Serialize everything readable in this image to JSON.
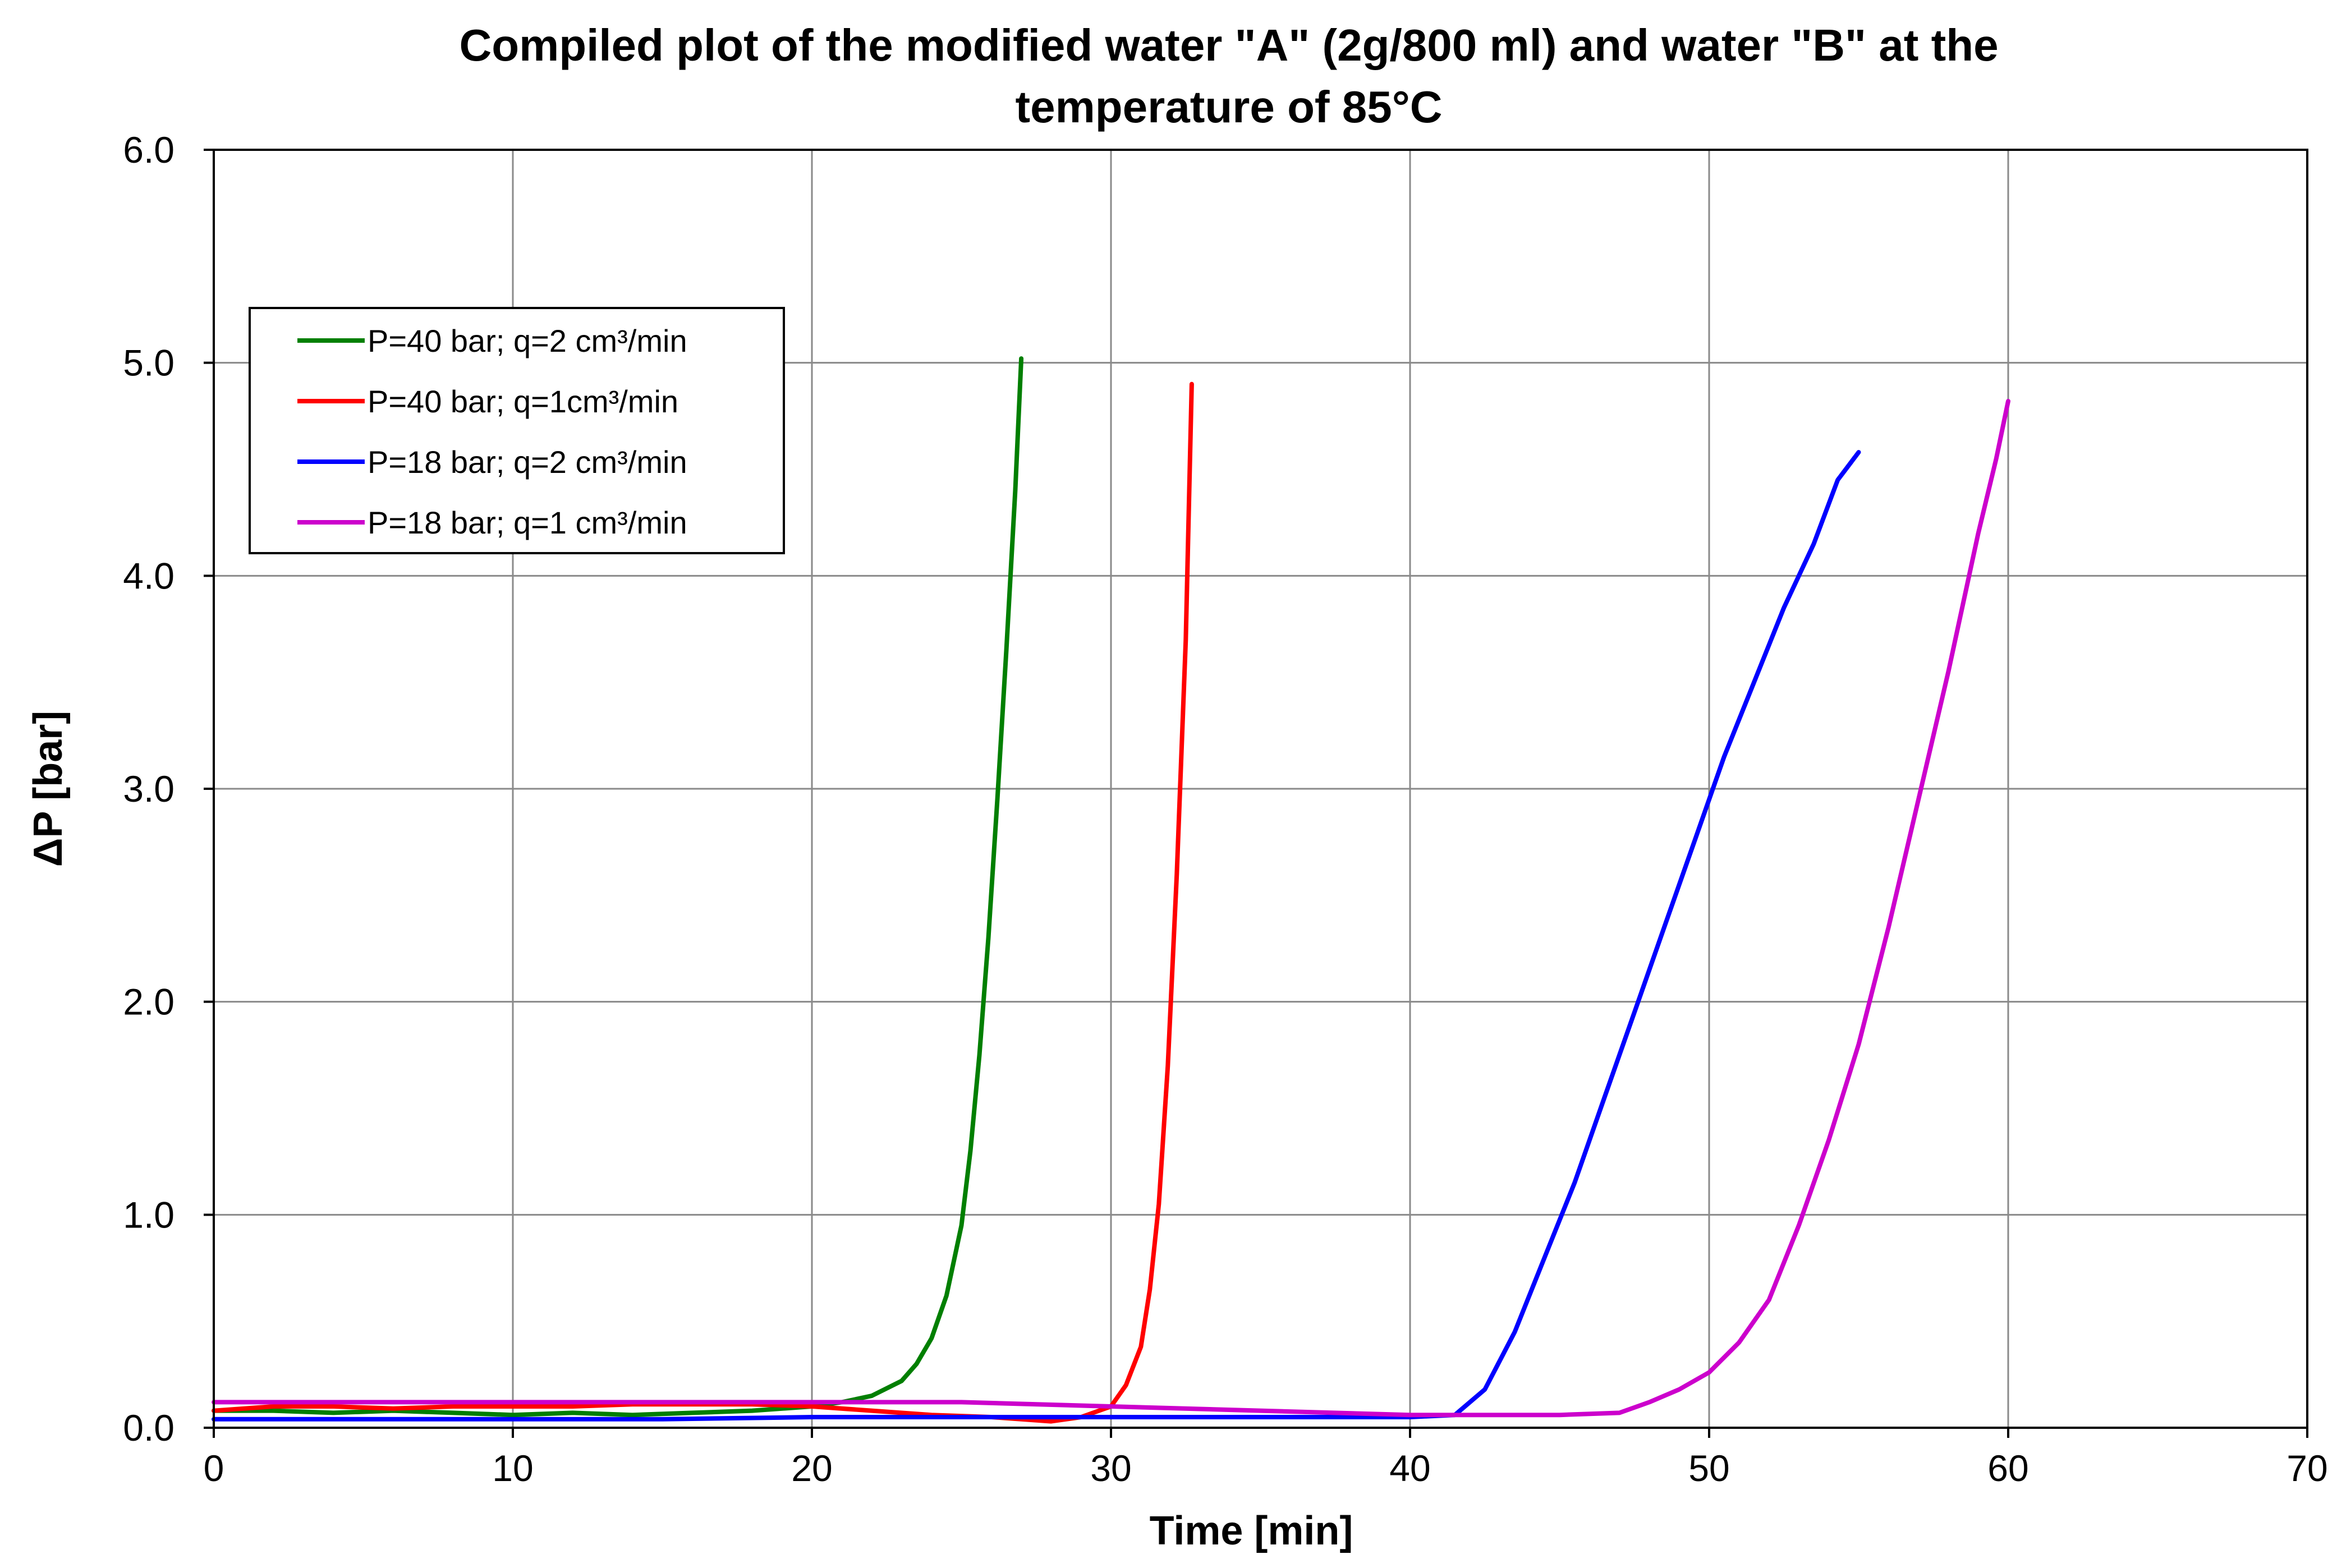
{
  "chart_data": {
    "type": "line",
    "title": "Compiled plot of the modified water \"A\" (2g/800 ml) and water \"B\" at the temperature of 85°C",
    "title_lines": [
      "Compiled plot of the modified water \"A\" (2g/800 ml) and water \"B\" at the",
      "temperature of 85°C"
    ],
    "xlabel": "Time [min]",
    "ylabel": "ΔP [bar]",
    "xlim": [
      0,
      70
    ],
    "ylim": [
      0,
      6
    ],
    "xticks": [
      0,
      10,
      20,
      30,
      40,
      50,
      60,
      70
    ],
    "xtick_labels": [
      "0",
      "10",
      "20",
      "30",
      "40",
      "50",
      "60",
      "70"
    ],
    "yticks": [
      0,
      1,
      2,
      3,
      4,
      5,
      6
    ],
    "ytick_labels": [
      "0.0",
      "1.0",
      "2.0",
      "3.0",
      "4.0",
      "5.0",
      "6.0"
    ],
    "grid": true,
    "legend_position": "upper-left",
    "series": [
      {
        "name": "P=40 bar; q=2 cm³/min",
        "color": "#007f00",
        "x": [
          0,
          2,
          4,
          6,
          8,
          10,
          12,
          14,
          16,
          18,
          20,
          21,
          22,
          23,
          23.5,
          24,
          24.5,
          25,
          25.3,
          25.6,
          25.9,
          26.2,
          26.5,
          26.8,
          27
        ],
        "y": [
          0.08,
          0.08,
          0.07,
          0.08,
          0.07,
          0.06,
          0.07,
          0.06,
          0.07,
          0.08,
          0.1,
          0.12,
          0.15,
          0.22,
          0.3,
          0.42,
          0.62,
          0.95,
          1.3,
          1.75,
          2.3,
          2.95,
          3.65,
          4.4,
          5.02
        ]
      },
      {
        "name": "P=40 bar; q=1cm³/min",
        "color": "#ff0000",
        "x": [
          0,
          2,
          4,
          6,
          8,
          10,
          12,
          14,
          16,
          18,
          20,
          22,
          24,
          26,
          28,
          29,
          30,
          30.5,
          31,
          31.3,
          31.6,
          31.9,
          32.2,
          32.5,
          32.7
        ],
        "y": [
          0.08,
          0.1,
          0.1,
          0.09,
          0.1,
          0.1,
          0.1,
          0.11,
          0.11,
          0.11,
          0.1,
          0.08,
          0.06,
          0.05,
          0.03,
          0.05,
          0.1,
          0.2,
          0.38,
          0.65,
          1.05,
          1.7,
          2.6,
          3.7,
          4.9
        ]
      },
      {
        "name": "P=18 bar; q=2 cm³/min",
        "color": "#0000ff",
        "x": [
          0,
          5,
          10,
          15,
          20,
          25,
          30,
          35,
          40,
          41.5,
          42.5,
          43.5,
          44.5,
          45.5,
          46.5,
          47.5,
          48.5,
          49.5,
          50.5,
          51.5,
          52.5,
          53.5,
          54.3,
          55
        ],
        "y": [
          0.04,
          0.04,
          0.04,
          0.04,
          0.05,
          0.05,
          0.05,
          0.05,
          0.05,
          0.06,
          0.18,
          0.45,
          0.8,
          1.15,
          1.55,
          1.95,
          2.35,
          2.75,
          3.15,
          3.5,
          3.85,
          4.15,
          4.45,
          4.58
        ]
      },
      {
        "name": "P=18 bar; q=1 cm³/min",
        "color": "#cc00cc",
        "x": [
          0,
          5,
          10,
          15,
          20,
          25,
          30,
          35,
          40,
          45,
          47,
          48,
          49,
          50,
          51,
          52,
          53,
          54,
          55,
          56,
          57,
          58,
          59,
          59.6,
          60
        ],
        "y": [
          0.12,
          0.12,
          0.12,
          0.12,
          0.12,
          0.12,
          0.1,
          0.08,
          0.06,
          0.06,
          0.07,
          0.12,
          0.18,
          0.26,
          0.4,
          0.6,
          0.95,
          1.35,
          1.8,
          2.35,
          2.95,
          3.55,
          4.2,
          4.55,
          4.82
        ]
      }
    ]
  }
}
